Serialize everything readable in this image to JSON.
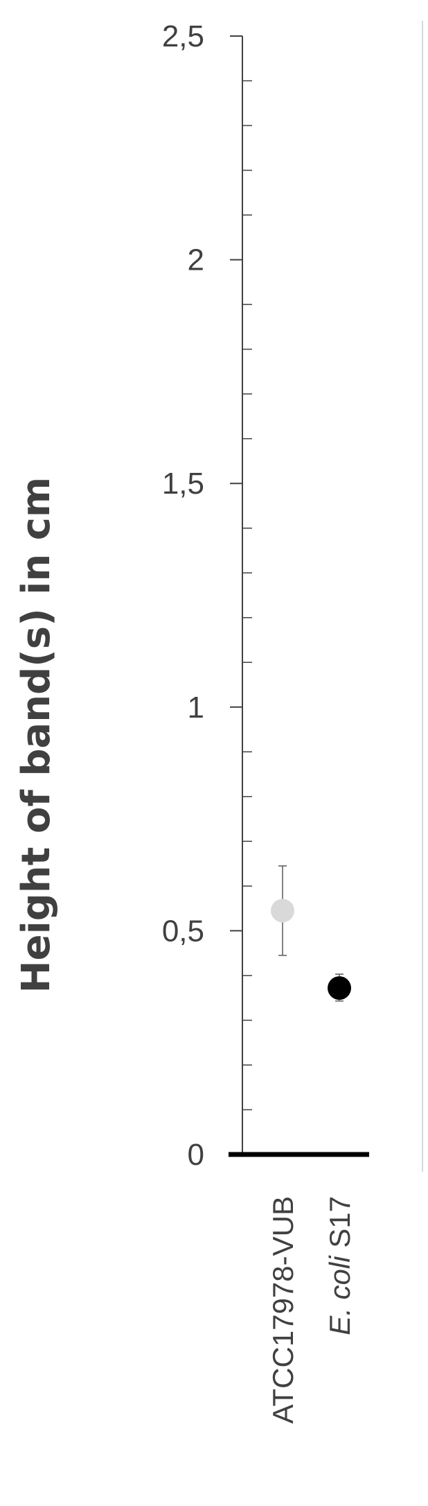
{
  "chart_data": {
    "type": "scatter",
    "title": "",
    "ylabel": "Height of band(s) in cm",
    "xlabel": "",
    "ylim": [
      0,
      2.5
    ],
    "y_major_ticks": [
      "0",
      "0,5",
      "1",
      "1,5",
      "2",
      "2,5"
    ],
    "y_major_values": [
      0,
      0.5,
      1,
      1.5,
      2,
      2.5
    ],
    "y_minor_step": 0.1,
    "categories": [
      {
        "plain": "ATCC17978-VUB",
        "italic": "",
        "rest": ""
      },
      {
        "plain": "",
        "italic": "E. coli",
        "rest": " S17"
      }
    ],
    "points": [
      {
        "category_index": 0,
        "y": 0.545,
        "err_low": 0.445,
        "err_high": 0.645,
        "color": "#d9d9d9"
      },
      {
        "category_index": 1,
        "y": 0.372,
        "err_low": 0.343,
        "err_high": 0.403,
        "color": "#000000"
      }
    ],
    "grid": false,
    "legend": "none"
  }
}
